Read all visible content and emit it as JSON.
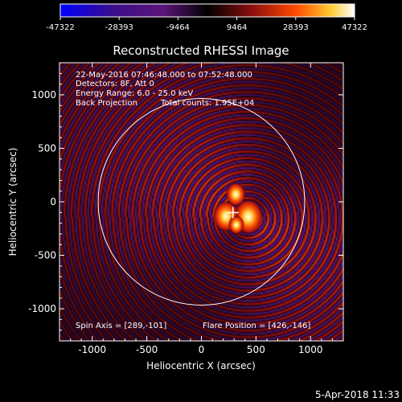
{
  "chart_data": {
    "type": "heatmap",
    "title": "Reconstructed RHESSI Image",
    "xlabel": "Heliocentric X (arcsec)",
    "ylabel": "Heliocentric Y (arcsec)",
    "xlim": [
      -1300,
      1300
    ],
    "ylim": [
      -1300,
      1300
    ],
    "x_ticks": [
      -1000,
      -500,
      0,
      500,
      1000
    ],
    "x_tick_labels": [
      "-1000",
      "-500",
      "0",
      "500",
      "1000"
    ],
    "y_ticks": [
      -1000,
      -500,
      0,
      500,
      1000
    ],
    "y_tick_labels": [
      "-1000",
      "-500",
      "0",
      "500",
      "1000"
    ],
    "colorbar": {
      "range": [
        -47322,
        47322
      ],
      "tick_values": [
        -47322,
        -28393,
        -9464,
        9464,
        28393,
        47322
      ],
      "tick_labels": [
        "-47322",
        "-28393",
        "-9464",
        "9464",
        "28393",
        "47322"
      ],
      "colors": [
        "#0000ff",
        "#6a1b9a",
        "#000000",
        "#b01010",
        "#ff8000",
        "#ffffff"
      ]
    },
    "annotations": [
      "22-May-2016 07:46:48.000 to 07:52:48.000",
      "Detectors: 8F, Att 0",
      "Energy Range: 6.0 - 25.0 keV",
      "Back Projection",
      "Total counts: 1.95E+04"
    ],
    "spin_axis": "Spin Axis = [289,-101]",
    "flare_position": "Flare Position = [426,-146]",
    "solar_limb_radius": 946,
    "spin_axis_xy": [
      289,
      -101
    ],
    "flare_position_xy": [
      426,
      -146
    ],
    "sources": [
      {
        "x": 430,
        "y": -140,
        "value": 47322
      },
      {
        "x": 225,
        "y": -135,
        "value": 38000
      },
      {
        "x": 315,
        "y": 70,
        "value": 22000
      },
      {
        "x": 320,
        "y": -215,
        "value": 12000
      }
    ]
  },
  "footer": {
    "timestamp": "5-Apr-2018 11:33"
  }
}
